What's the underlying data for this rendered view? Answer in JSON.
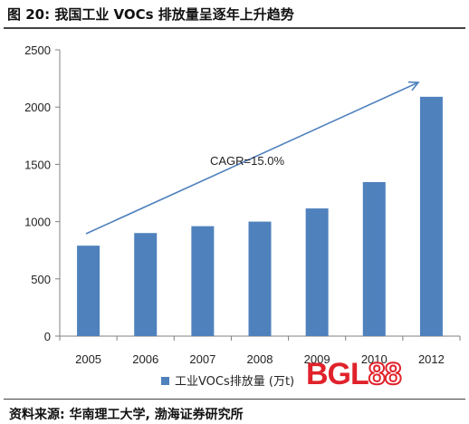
{
  "figure": {
    "title": "图 20:  我国工业 VOCs 排放量呈逐年上升趋势",
    "source": "资料来源:  华南理工大学, 渤海证券研究所"
  },
  "watermark": {
    "part1": "BGL",
    "part2": "88"
  },
  "colors": {
    "bar": "#4f81bd",
    "arrow": "#4f81bd",
    "axis": "#808080"
  },
  "chart_data": {
    "type": "bar",
    "categories": [
      "2005",
      "2006",
      "2007",
      "2008",
      "2009",
      "2010",
      "2012"
    ],
    "series": [
      {
        "name": "工业VOCs排放量 (万t)",
        "values": [
          790,
          900,
          960,
          1000,
          1115,
          1345,
          2090
        ]
      }
    ],
    "ylim": [
      0,
      2500
    ],
    "yticks": [
      0,
      500,
      1000,
      1500,
      2000,
      2500
    ],
    "grid": false,
    "legend_position": "bottom",
    "annotation": {
      "text": "CAGR=15.0%",
      "type": "upward-trend-arrow"
    }
  }
}
